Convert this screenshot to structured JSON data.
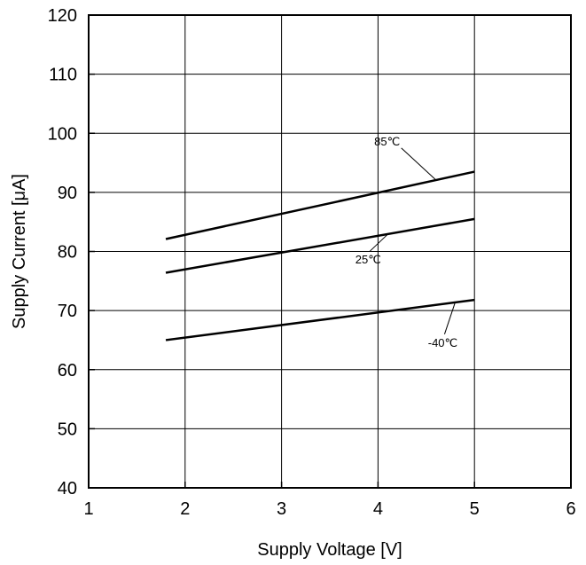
{
  "chart_data": {
    "type": "line",
    "xlabel": "Supply Voltage [V]",
    "ylabel": "Supply Current [μA]",
    "xlim": [
      1,
      6
    ],
    "ylim": [
      40,
      120
    ],
    "xticks": [
      1,
      2,
      3,
      4,
      5,
      6
    ],
    "yticks": [
      40,
      50,
      60,
      70,
      80,
      90,
      100,
      110,
      120
    ],
    "grid": true,
    "series": [
      {
        "name": "85℃",
        "x": [
          1.8,
          5.0
        ],
        "y": [
          82.1,
          93.5
        ]
      },
      {
        "name": "25℃",
        "x": [
          1.8,
          5.0
        ],
        "y": [
          76.4,
          85.5
        ]
      },
      {
        "name": "-40℃",
        "x": [
          1.8,
          5.0
        ],
        "y": [
          65.0,
          71.8
        ]
      }
    ],
    "annotations": [
      {
        "text": "85℃",
        "x": 4.6,
        "y": 92.1
      },
      {
        "text": "25℃",
        "x": 4.1,
        "y": 82.9
      },
      {
        "text": "-40℃",
        "x": 4.8,
        "y": 71.4
      }
    ]
  },
  "colors": {
    "line": "#000000",
    "grid": "#000000",
    "background": "#ffffff"
  }
}
